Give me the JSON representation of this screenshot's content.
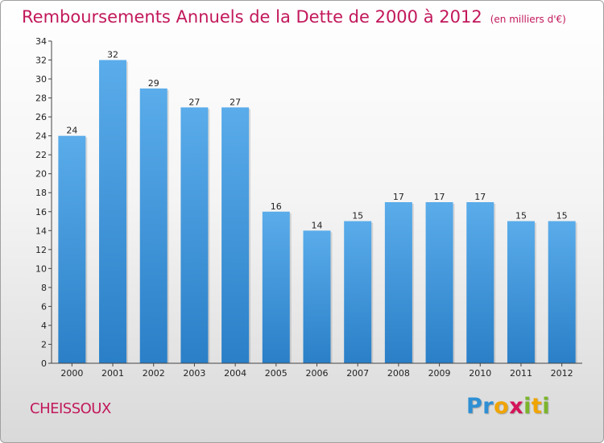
{
  "chart_data": {
    "type": "bar",
    "title": "Remboursements Annuels de la Dette de 2000 à 2012",
    "subtitle": "(en milliers d'€)",
    "categories": [
      "2000",
      "2001",
      "2002",
      "2003",
      "2004",
      "2005",
      "2006",
      "2007",
      "2008",
      "2009",
      "2010",
      "2011",
      "2012"
    ],
    "values": [
      24,
      32,
      29,
      27,
      27,
      16,
      14,
      15,
      17,
      17,
      17,
      15,
      15
    ],
    "ylim": [
      0,
      34
    ],
    "yticks": [
      0,
      2,
      4,
      6,
      8,
      10,
      12,
      14,
      16,
      18,
      20,
      22,
      24,
      26,
      28,
      30,
      32,
      34
    ],
    "grid": false,
    "legend": "none",
    "colors": {
      "bar_top": "#5aacea",
      "bar_bottom": "#2a7fc7",
      "title": "#c2185b"
    }
  },
  "commune": "CHEISSOUX",
  "logo": {
    "letters": [
      {
        "char": "P",
        "color": "#2e8fd4"
      },
      {
        "char": "r",
        "color": "#2e8fd4"
      },
      {
        "char": "o",
        "color": "#f0a400"
      },
      {
        "char": "x",
        "color": "#d4145a"
      },
      {
        "char": "i",
        "color": "#7bb52b"
      },
      {
        "char": "t",
        "color": "#f0a400"
      },
      {
        "char": "i",
        "color": "#7bb52b"
      }
    ]
  }
}
